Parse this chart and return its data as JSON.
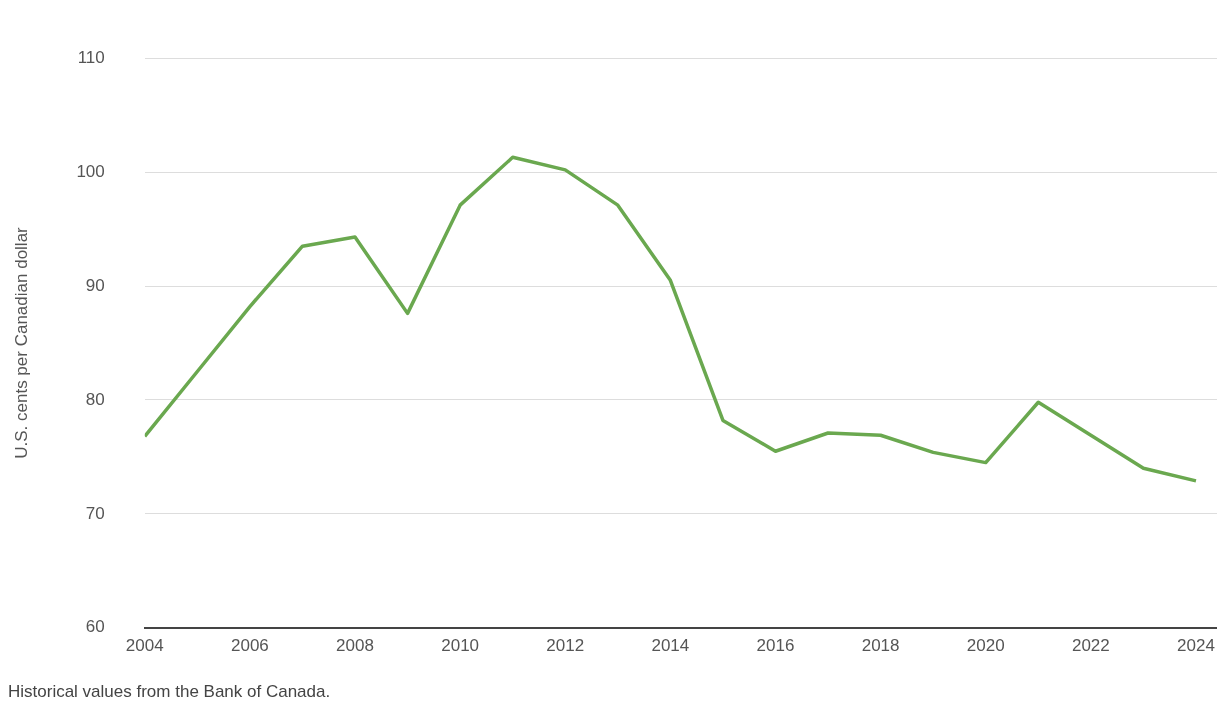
{
  "chart_data": {
    "type": "line",
    "x": [
      2004,
      2005,
      2006,
      2007,
      2008,
      2009,
      2010,
      2011,
      2012,
      2013,
      2014,
      2015,
      2016,
      2017,
      2018,
      2019,
      2020,
      2021,
      2022,
      2023,
      2024
    ],
    "series": [
      {
        "color": "#6aa84f",
        "values": [
          76.8,
          82.5,
          88.2,
          93.5,
          94.3,
          87.6,
          97.1,
          101.3,
          100.2,
          97.1,
          90.5,
          78.2,
          75.5,
          77.1,
          76.9,
          75.4,
          74.5,
          79.8,
          76.9,
          74.0,
          72.9
        ]
      }
    ],
    "xlim": [
      2004,
      2024.4
    ],
    "xticks": [
      2004,
      2006,
      2008,
      2010,
      2012,
      2014,
      2016,
      2018,
      2020,
      2022,
      2024
    ],
    "ylim": [
      60,
      110
    ],
    "yticks": [
      60,
      70,
      80,
      90,
      100,
      110
    ],
    "ylabel": "U.S. cents per Canadian dollar",
    "annotations": [
      "Historical values from the Bank of Canada."
    ],
    "grid": "y",
    "legend": false,
    "marker": "none",
    "line_style": "solid"
  }
}
